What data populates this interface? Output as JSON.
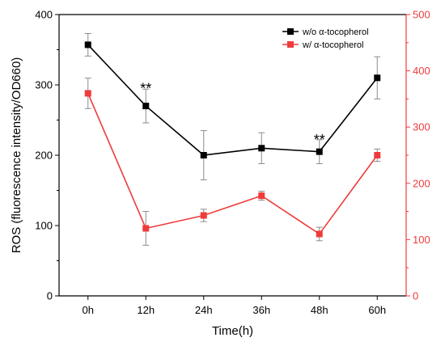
{
  "chart_data": {
    "type": "line",
    "categories": [
      "0h",
      "12h",
      "24h",
      "36h",
      "48h",
      "60h"
    ],
    "xlabel": "Time(h)",
    "ylabel_left": "ROS (fluorescence intensity/OD660)",
    "ylim_left": [
      0,
      400
    ],
    "yticks_left": [
      0,
      100,
      200,
      300,
      400
    ],
    "ylim_right": [
      0,
      500
    ],
    "yticks_right": [
      0,
      100,
      200,
      300,
      400,
      500
    ],
    "grid": false,
    "legend_position": "top-right",
    "series": [
      {
        "name": "w/o α-tocopherol",
        "axis": "left",
        "color": "#000000",
        "values": [
          357,
          270,
          200,
          210,
          205,
          310
        ],
        "errors": [
          16,
          24,
          35,
          22,
          17,
          30
        ]
      },
      {
        "name": "w/ α-tocopherol",
        "axis": "right",
        "color": "#ef3b3b",
        "values": [
          360,
          120,
          143,
          178,
          110,
          250
        ],
        "errors": [
          27,
          30,
          11,
          8,
          12,
          11
        ]
      }
    ],
    "annotations": [
      {
        "category": "12h",
        "text": "**",
        "value_left": 297
      },
      {
        "category": "48h",
        "text": "**",
        "value_left": 224
      }
    ]
  }
}
